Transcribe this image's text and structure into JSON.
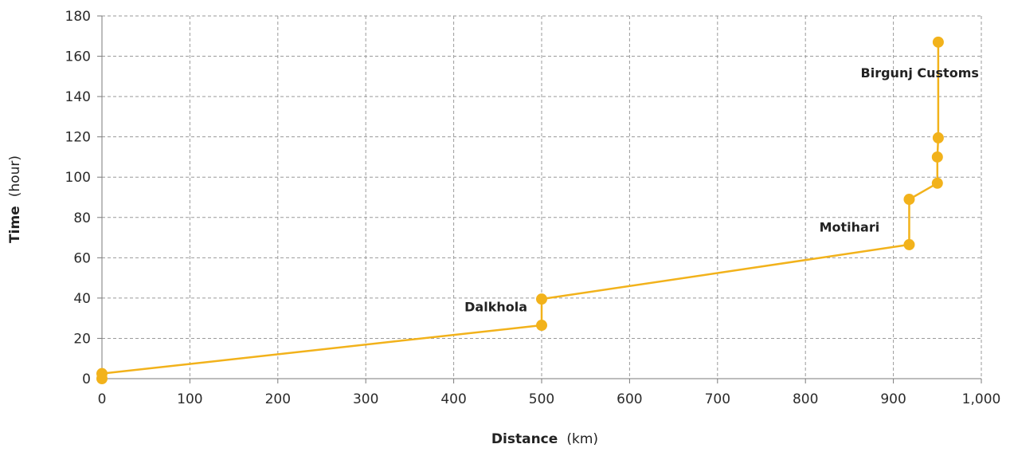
{
  "chart_data": {
    "type": "line",
    "title": "",
    "xlabel": {
      "bold": "Distance",
      "unit": "(km)"
    },
    "ylabel": {
      "bold": "Time",
      "unit": "(hour)"
    },
    "xlim": [
      0,
      1000
    ],
    "ylim": [
      0,
      180
    ],
    "x_ticks": [
      0,
      100,
      200,
      300,
      400,
      500,
      600,
      700,
      800,
      900,
      1000
    ],
    "x_tick_labels": [
      "0",
      "100",
      "200",
      "300",
      "400",
      "500",
      "600",
      "700",
      "800",
      "900",
      "1,000"
    ],
    "y_ticks": [
      0,
      20,
      40,
      60,
      80,
      100,
      120,
      140,
      160,
      180
    ],
    "y_tick_labels": [
      "0",
      "20",
      "40",
      "60",
      "80",
      "100",
      "120",
      "140",
      "160",
      "180"
    ],
    "grid": true,
    "series": [
      {
        "color": "#f2b21b",
        "points": [
          [
            0,
            0
          ],
          [
            0,
            2.5
          ],
          [
            500,
            26.5
          ],
          [
            500,
            39.5
          ],
          [
            918,
            66.5
          ],
          [
            918,
            89
          ],
          [
            950,
            97
          ],
          [
            950,
            110
          ],
          [
            951,
            119.5
          ],
          [
            951,
            167
          ]
        ]
      }
    ],
    "annotations": [
      {
        "text": "Dalkhola",
        "x": 448,
        "y": 33.5
      },
      {
        "text": "Motihari",
        "x": 850,
        "y": 73
      },
      {
        "text": "Birgunj Customs",
        "x": 930,
        "y": 149.5
      }
    ]
  }
}
